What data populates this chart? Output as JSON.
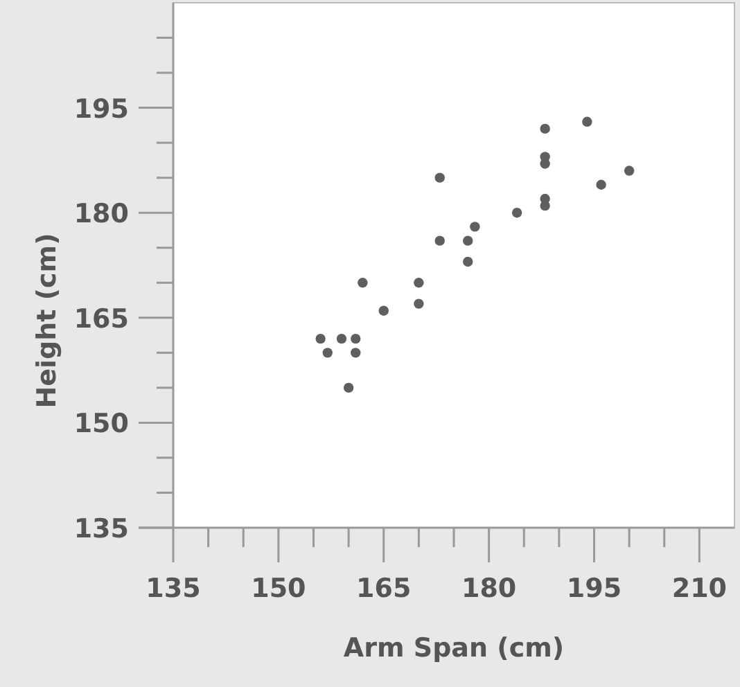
{
  "chart_data": {
    "type": "scatter",
    "xlabel": "Arm Span (cm)",
    "ylabel": "Height (cm)",
    "color": "#5f5f5f",
    "marker": "circle",
    "grid": false,
    "x": [
      156,
      157,
      159,
      161,
      161,
      160,
      162,
      165,
      170,
      170,
      173,
      173,
      177,
      177,
      178,
      184,
      188,
      188,
      188,
      188,
      188,
      194,
      196,
      200
    ],
    "values": [
      162,
      160,
      162,
      162,
      160,
      155,
      170,
      166,
      170,
      167,
      185,
      176,
      176,
      173,
      178,
      180,
      192,
      188,
      187,
      182,
      181,
      193,
      184,
      186
    ],
    "xlim": [
      135,
      215
    ],
    "ylim": [
      135,
      210
    ],
    "xticks": [
      135,
      {
        "value": 140,
        "label": null
      },
      {
        "value": 145,
        "label": null
      },
      150,
      {
        "value": 155,
        "label": null
      },
      {
        "value": 160,
        "label": null
      },
      165,
      {
        "value": 170,
        "label": null
      },
      {
        "value": 175,
        "label": null
      },
      180,
      {
        "value": 185,
        "label": null
      },
      {
        "value": 190,
        "label": null
      },
      195,
      {
        "value": 200,
        "label": null
      },
      {
        "value": 205,
        "label": null
      },
      210
    ],
    "yticks": [
      135,
      {
        "value": 140,
        "label": null
      },
      {
        "value": 145,
        "label": null
      },
      150,
      {
        "value": 155,
        "label": null
      },
      {
        "value": 160,
        "label": null
      },
      165,
      {
        "value": 170,
        "label": null
      },
      {
        "value": 175,
        "label": null
      },
      180,
      {
        "value": 185,
        "label": null
      },
      {
        "value": 190,
        "label": null
      },
      195,
      {
        "value": 200,
        "label": null
      },
      {
        "value": 205,
        "label": null
      }
    ]
  }
}
